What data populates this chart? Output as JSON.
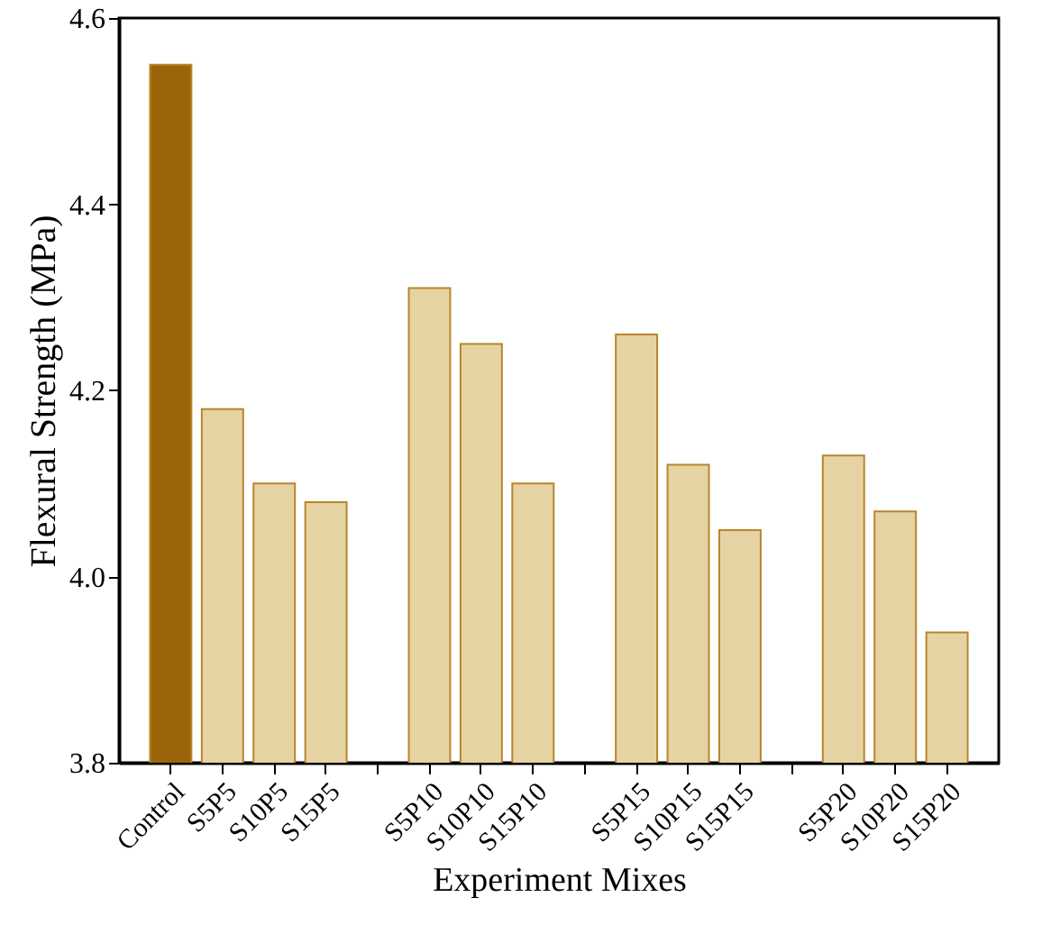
{
  "chart_data": {
    "type": "bar",
    "xlabel": "Experiment Mixes",
    "ylabel": "Flexural Strength (MPa)",
    "categories": [
      "Control",
      "S5P5",
      "S10P5",
      "S15P5",
      null,
      "S5P10",
      "S10P10",
      "S15P10",
      null,
      "S5P15",
      "S10P15",
      "S15P15",
      null,
      "S5P20",
      "S10P20",
      "S15P20"
    ],
    "values": [
      4.55,
      4.18,
      4.1,
      4.08,
      null,
      4.31,
      4.25,
      4.1,
      null,
      4.26,
      4.12,
      4.05,
      null,
      4.13,
      4.07,
      3.94
    ],
    "colors": [
      "#9a6508",
      "#e6d3a3",
      "#e6d3a3",
      "#e6d3a3",
      null,
      "#e6d3a3",
      "#e6d3a3",
      "#e6d3a3",
      null,
      "#e6d3a3",
      "#e6d3a3",
      "#e6d3a3",
      null,
      "#e6d3a3",
      "#e6d3a3",
      "#e6d3a3"
    ],
    "ylim": [
      3.8,
      4.6
    ],
    "yticks": [
      {
        "value": 3.8,
        "label": "3.8"
      },
      {
        "value": 4,
        "label": "4.0"
      },
      {
        "value": 4.2,
        "label": "4.2"
      },
      {
        "value": 4.4,
        "label": "4.4"
      },
      {
        "value": 4.6,
        "label": "4.6"
      }
    ]
  }
}
